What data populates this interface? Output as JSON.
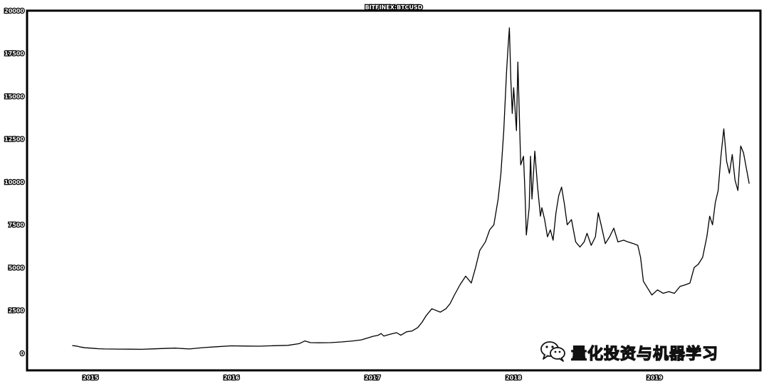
{
  "watermark": {
    "text": "量化投资与机器学习",
    "icon": "wechat-icon"
  },
  "chart_data": {
    "type": "line",
    "title": "BITFINEX:BTCUSD",
    "xlabel": "",
    "ylabel": "",
    "ylim": [
      -1000,
      20000
    ],
    "xlim": [
      2014.55,
      2019.75
    ],
    "yticks": [
      0,
      2500,
      5000,
      7500,
      10000,
      12500,
      15000,
      17500,
      20000
    ],
    "xticks": [
      {
        "value": 2016.0,
        "label": "2016"
      },
      {
        "value": 2017.0,
        "label": "2017"
      },
      {
        "value": 2018.0,
        "label": "2018"
      },
      {
        "value": 2019.0,
        "label": "2019"
      },
      {
        "value": 2015.0,
        "label": "2015"
      }
    ],
    "grid": false,
    "legend": "none",
    "line_color": "#000000",
    "series": [
      {
        "x": [
          2014.87,
          2014.9,
          2014.93,
          2014.96,
          2015.0,
          2015.03,
          2015.06,
          2015.1,
          2015.15,
          2015.2,
          2015.28,
          2015.36,
          2015.44,
          2015.52,
          2015.6,
          2015.7,
          2015.8,
          2015.9,
          2016.0,
          2016.1,
          2016.2,
          2016.3,
          2016.4,
          2016.48,
          2016.52,
          2016.56,
          2016.62,
          2016.7,
          2016.78,
          2016.86,
          2016.92,
          2016.96,
          2017.0,
          2017.04,
          2017.06,
          2017.08,
          2017.12,
          2017.17,
          2017.2,
          2017.24,
          2017.28,
          2017.32,
          2017.35,
          2017.38,
          2017.42,
          2017.45,
          2017.48,
          2017.52,
          2017.55,
          2017.58,
          2017.62,
          2017.66,
          2017.7,
          2017.73,
          2017.76,
          2017.8,
          2017.83,
          2017.86,
          2017.89,
          2017.91,
          2017.93,
          2017.95,
          2017.96,
          2017.97,
          2017.98,
          2017.99,
          2018.0,
          2018.02,
          2018.03,
          2018.05,
          2018.07,
          2018.08,
          2018.09,
          2018.11,
          2018.12,
          2018.13,
          2018.15,
          2018.17,
          2018.19,
          2018.2,
          2018.22,
          2018.24,
          2018.26,
          2018.28,
          2018.3,
          2018.32,
          2018.34,
          2018.36,
          2018.38,
          2018.41,
          2018.44,
          2018.47,
          2018.5,
          2018.52,
          2018.55,
          2018.58,
          2018.6,
          2018.62,
          2018.65,
          2018.68,
          2018.71,
          2018.74,
          2018.78,
          2018.81,
          2018.85,
          2018.88,
          2018.9,
          2018.92,
          2018.95,
          2018.98,
          2019.02,
          2019.06,
          2019.1,
          2019.14,
          2019.18,
          2019.22,
          2019.25,
          2019.28,
          2019.31,
          2019.34,
          2019.37,
          2019.39,
          2019.41,
          2019.43,
          2019.45,
          2019.47,
          2019.49,
          2019.51,
          2019.53,
          2019.55,
          2019.57,
          2019.59,
          2019.61,
          2019.63,
          2019.65,
          2019.67
        ],
        "y": [
          450,
          420,
          360,
          320,
          300,
          280,
          260,
          250,
          245,
          240,
          235,
          230,
          255,
          280,
          300,
          250,
          330,
          380,
          430,
          420,
          410,
          440,
          460,
          560,
          720,
          620,
          610,
          620,
          660,
          720,
          780,
          880,
          980,
          1050,
          1150,
          1000,
          1100,
          1200,
          1050,
          1250,
          1300,
          1500,
          1800,
          2200,
          2600,
          2500,
          2400,
          2600,
          2900,
          3400,
          4000,
          4500,
          4100,
          5000,
          6000,
          6500,
          7200,
          7500,
          9000,
          10500,
          13000,
          16500,
          17800,
          19000,
          16000,
          14000,
          15500,
          13000,
          17000,
          11000,
          11500,
          9500,
          6900,
          8500,
          11500,
          9000,
          11800,
          9700,
          8000,
          8500,
          7800,
          6800,
          7200,
          6600,
          8200,
          9200,
          9700,
          8700,
          7500,
          7800,
          6500,
          6200,
          6500,
          7000,
          6300,
          6800,
          8200,
          7500,
          6400,
          6800,
          7300,
          6500,
          6600,
          6500,
          6400,
          6300,
          5600,
          4200,
          3800,
          3400,
          3700,
          3500,
          3600,
          3500,
          3900,
          4000,
          4100,
          5000,
          5200,
          5600,
          6800,
          8000,
          7500,
          8800,
          9500,
          11500,
          13100,
          11200,
          10500,
          11600,
          10100,
          9500,
          12100,
          11700,
          10800,
          9900
        ]
      }
    ]
  }
}
